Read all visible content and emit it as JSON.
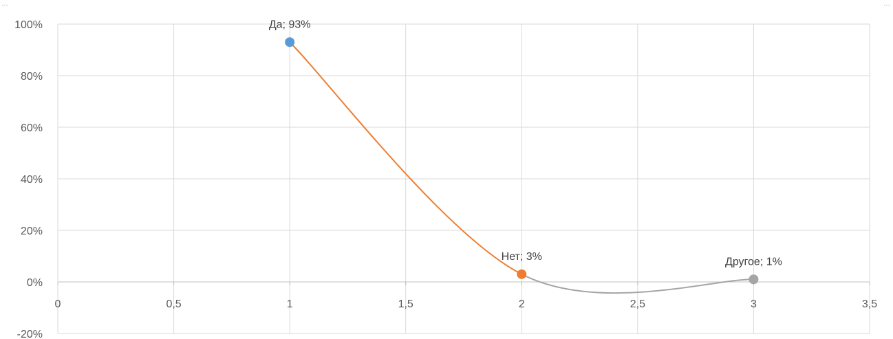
{
  "chart_data": {
    "type": "scatter",
    "title": "",
    "xlabel": "",
    "ylabel": "",
    "xlim": [
      0,
      3.5
    ],
    "ylim": [
      -0.2,
      1.0
    ],
    "x_ticks": [
      0,
      0.5,
      1,
      1.5,
      2,
      2.5,
      3,
      3.5
    ],
    "x_tick_labels": [
      "0",
      "0,5",
      "1",
      "1,5",
      "2",
      "2,5",
      "3",
      "3,5"
    ],
    "y_ticks": [
      -0.2,
      0,
      0.2,
      0.4,
      0.6,
      0.8,
      1.0
    ],
    "y_tick_labels": [
      "-20%",
      "0%",
      "20%",
      "40%",
      "60%",
      "80%",
      "100%"
    ],
    "grid": true,
    "smooth_lines": true,
    "points": [
      {
        "x": 1,
        "y": 0.93,
        "label": "Да; 93%",
        "color": "#5b9bd5"
      },
      {
        "x": 2,
        "y": 0.03,
        "label": "Нет; 3%",
        "color": "#ed7d31"
      },
      {
        "x": 3,
        "y": 0.01,
        "label": "Другое; 1%",
        "color": "#a5a5a5"
      }
    ],
    "segment_colors": [
      "#ed7d31",
      "#a5a5a5"
    ]
  }
}
